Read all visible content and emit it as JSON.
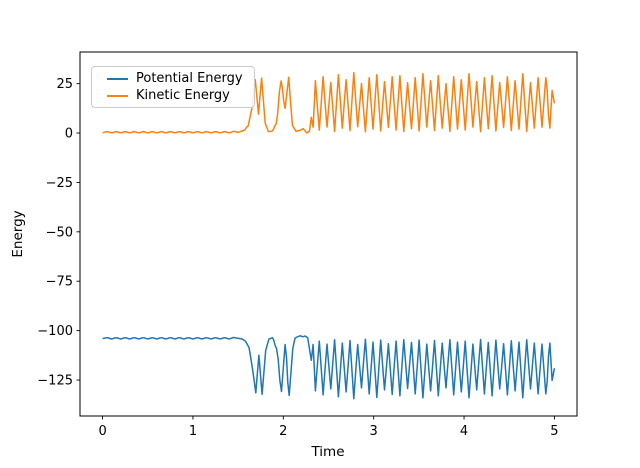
{
  "figure": {
    "background": "#ffffff",
    "frame_color": "#000000",
    "legend_border_color": "#cccccc"
  },
  "chart_data": {
    "type": "line",
    "title": "",
    "xlabel": "Time",
    "ylabel": "Energy",
    "xlim": [
      -0.25,
      5.25
    ],
    "ylim": [
      -143.2,
      41.0
    ],
    "xticks": [
      0,
      1,
      2,
      3,
      4,
      5
    ],
    "yticks": [
      25,
      0,
      -25,
      -50,
      -75,
      -100,
      -125
    ],
    "grid": false,
    "legend": {
      "position": "upper left",
      "frame": true
    },
    "series": [
      {
        "name": "Potential Energy",
        "color": "#1f77b4",
        "interpolation": "cosine",
        "points": [
          [
            0,
            -104
          ],
          [
            0.05,
            -103.6
          ],
          [
            0.1,
            -104.2
          ],
          [
            0.15,
            -103.6
          ],
          [
            0.2,
            -104.2
          ],
          [
            0.25,
            -103.6
          ],
          [
            0.3,
            -104.2
          ],
          [
            0.35,
            -103.6
          ],
          [
            0.4,
            -104.2
          ],
          [
            0.45,
            -103.6
          ],
          [
            0.5,
            -104.2
          ],
          [
            0.55,
            -103.6
          ],
          [
            0.6,
            -104.2
          ],
          [
            0.65,
            -103.6
          ],
          [
            0.7,
            -104.2
          ],
          [
            0.75,
            -103.6
          ],
          [
            0.8,
            -104.2
          ],
          [
            0.85,
            -103.6
          ],
          [
            0.9,
            -104.2
          ],
          [
            0.95,
            -103.6
          ],
          [
            1,
            -104.2
          ],
          [
            1.05,
            -103.6
          ],
          [
            1.1,
            -104.2
          ],
          [
            1.15,
            -103.6
          ],
          [
            1.2,
            -104.2
          ],
          [
            1.25,
            -103.6
          ],
          [
            1.3,
            -104.2
          ],
          [
            1.35,
            -103.6
          ],
          [
            1.4,
            -104.2
          ],
          [
            1.45,
            -103.5
          ],
          [
            1.5,
            -103.9
          ],
          [
            1.54,
            -104.2
          ],
          [
            1.58,
            -105.3
          ],
          [
            1.62,
            -108.5
          ],
          [
            1.655,
            -118
          ],
          [
            1.695,
            -131.5
          ],
          [
            1.73,
            -112.5
          ],
          [
            1.765,
            -132.2
          ],
          [
            1.805,
            -110
          ],
          [
            1.84,
            -104.3
          ],
          [
            1.88,
            -103.6
          ],
          [
            1.925,
            -109
          ],
          [
            1.98,
            -130.8
          ],
          [
            2.02,
            -107
          ],
          [
            2.065,
            -132.8
          ],
          [
            2.105,
            -109
          ],
          [
            2.13,
            -103.8
          ],
          [
            2.16,
            -103
          ],
          [
            2.19,
            -102.6
          ],
          [
            2.215,
            -103.1
          ],
          [
            2.24,
            -102.7
          ],
          [
            2.27,
            -103.6
          ],
          [
            2.31,
            -115
          ],
          [
            2.33,
            -107
          ],
          [
            2.355,
            -130.5
          ],
          [
            2.398,
            -105.3
          ],
          [
            2.44,
            -132.5
          ],
          [
            2.483,
            -106.8
          ],
          [
            2.525,
            -129.5
          ],
          [
            2.568,
            -104.6
          ],
          [
            2.61,
            -133.5
          ],
          [
            2.653,
            -106.3
          ],
          [
            2.695,
            -131
          ],
          [
            2.738,
            -105
          ],
          [
            2.78,
            -134.5
          ],
          [
            2.823,
            -107
          ],
          [
            2.865,
            -129
          ],
          [
            2.908,
            -104.4
          ],
          [
            2.95,
            -132
          ],
          [
            2.993,
            -105.8
          ],
          [
            3.035,
            -133.8
          ],
          [
            3.078,
            -104.8
          ],
          [
            3.12,
            -130
          ],
          [
            3.163,
            -106.6
          ],
          [
            3.205,
            -132.3
          ],
          [
            3.248,
            -105.3
          ],
          [
            3.29,
            -133
          ],
          [
            3.333,
            -104.6
          ],
          [
            3.375,
            -129.3
          ],
          [
            3.418,
            -106
          ],
          [
            3.46,
            -132
          ],
          [
            3.503,
            -104.8
          ],
          [
            3.545,
            -134
          ],
          [
            3.588,
            -106.8
          ],
          [
            3.63,
            -130.5
          ],
          [
            3.673,
            -105
          ],
          [
            3.715,
            -133
          ],
          [
            3.758,
            -106.3
          ],
          [
            3.8,
            -129
          ],
          [
            3.843,
            -104.6
          ],
          [
            3.885,
            -132.5
          ],
          [
            3.928,
            -105.8
          ],
          [
            3.97,
            -131
          ],
          [
            4.013,
            -105.3
          ],
          [
            4.055,
            -134
          ],
          [
            4.098,
            -106.8
          ],
          [
            4.14,
            -130
          ],
          [
            4.183,
            -104.5
          ],
          [
            4.225,
            -132
          ],
          [
            4.268,
            -106
          ],
          [
            4.31,
            -133
          ],
          [
            4.353,
            -104.8
          ],
          [
            4.395,
            -129.5
          ],
          [
            4.438,
            -106.6
          ],
          [
            4.48,
            -132.5
          ],
          [
            4.523,
            -105.1
          ],
          [
            4.565,
            -130.5
          ],
          [
            4.608,
            -105.8
          ],
          [
            4.65,
            -134
          ],
          [
            4.693,
            -104.6
          ],
          [
            4.735,
            -129.5
          ],
          [
            4.778,
            -106.3
          ],
          [
            4.82,
            -132
          ],
          [
            4.863,
            -106.8
          ],
          [
            4.905,
            -132
          ],
          [
            4.95,
            -106.3
          ],
          [
            4.975,
            -125.2
          ],
          [
            5,
            -119
          ]
        ]
      },
      {
        "name": "Kinetic Energy",
        "color": "#ff7f0e",
        "interpolation": "cosine",
        "points": [
          [
            0,
            0.2
          ],
          [
            0.05,
            0.7
          ],
          [
            0.1,
            0.1
          ],
          [
            0.15,
            0.7
          ],
          [
            0.2,
            0.1
          ],
          [
            0.25,
            0.7
          ],
          [
            0.3,
            0.1
          ],
          [
            0.35,
            0.7
          ],
          [
            0.4,
            0.1
          ],
          [
            0.45,
            0.7
          ],
          [
            0.5,
            0.1
          ],
          [
            0.55,
            0.7
          ],
          [
            0.6,
            0.1
          ],
          [
            0.65,
            0.7
          ],
          [
            0.7,
            0.1
          ],
          [
            0.75,
            0.7
          ],
          [
            0.8,
            0.1
          ],
          [
            0.85,
            0.7
          ],
          [
            0.9,
            0.1
          ],
          [
            0.95,
            0.7
          ],
          [
            1,
            0.1
          ],
          [
            1.05,
            0.7
          ],
          [
            1.1,
            0.1
          ],
          [
            1.15,
            0.7
          ],
          [
            1.2,
            0.1
          ],
          [
            1.25,
            0.7
          ],
          [
            1.3,
            0.1
          ],
          [
            1.35,
            0.7
          ],
          [
            1.4,
            0.1
          ],
          [
            1.45,
            0.8
          ],
          [
            1.5,
            0.4
          ],
          [
            1.56,
            1.2
          ],
          [
            1.61,
            3.5
          ],
          [
            1.65,
            12
          ],
          [
            1.69,
            27
          ],
          [
            1.725,
            9.5
          ],
          [
            1.76,
            27.8
          ],
          [
            1.8,
            5
          ],
          [
            1.835,
            0.7
          ],
          [
            1.875,
            0.9
          ],
          [
            1.92,
            4.5
          ],
          [
            1.975,
            26.3
          ],
          [
            2.02,
            12.5
          ],
          [
            2.06,
            28.2
          ],
          [
            2.1,
            4
          ],
          [
            2.14,
            0.8
          ],
          [
            2.18,
            1.3
          ],
          [
            2.22,
            2.2
          ],
          [
            2.26,
            0
          ],
          [
            2.29,
            1
          ],
          [
            2.31,
            8
          ],
          [
            2.33,
            3
          ],
          [
            2.355,
            26.5
          ],
          [
            2.398,
            1.5
          ],
          [
            2.44,
            28.5
          ],
          [
            2.483,
            3
          ],
          [
            2.525,
            25.5
          ],
          [
            2.568,
            0.8
          ],
          [
            2.61,
            29.5
          ],
          [
            2.653,
            2.5
          ],
          [
            2.695,
            27
          ],
          [
            2.738,
            1.2
          ],
          [
            2.78,
            30.5
          ],
          [
            2.823,
            3.2
          ],
          [
            2.865,
            25
          ],
          [
            2.908,
            0.6
          ],
          [
            2.95,
            28
          ],
          [
            2.993,
            2
          ],
          [
            3.035,
            29.5
          ],
          [
            3.078,
            1
          ],
          [
            3.12,
            26
          ],
          [
            3.163,
            2.8
          ],
          [
            3.205,
            28.5
          ],
          [
            3.248,
            1.5
          ],
          [
            3.29,
            29
          ],
          [
            3.333,
            0.8
          ],
          [
            3.375,
            25.5
          ],
          [
            3.418,
            2.2
          ],
          [
            3.46,
            28
          ],
          [
            3.503,
            1
          ],
          [
            3.545,
            30
          ],
          [
            3.588,
            3
          ],
          [
            3.63,
            26.5
          ],
          [
            3.673,
            1.2
          ],
          [
            3.715,
            29
          ],
          [
            3.758,
            2.5
          ],
          [
            3.8,
            25
          ],
          [
            3.843,
            0.8
          ],
          [
            3.885,
            28.5
          ],
          [
            3.928,
            2
          ],
          [
            3.97,
            27
          ],
          [
            4.013,
            1.5
          ],
          [
            4.055,
            30
          ],
          [
            4.098,
            3
          ],
          [
            4.14,
            26
          ],
          [
            4.183,
            0.7
          ],
          [
            4.225,
            28
          ],
          [
            4.268,
            2.2
          ],
          [
            4.31,
            29
          ],
          [
            4.353,
            1
          ],
          [
            4.395,
            25.5
          ],
          [
            4.438,
            2.8
          ],
          [
            4.48,
            28.5
          ],
          [
            4.523,
            1.3
          ],
          [
            4.565,
            26.5
          ],
          [
            4.608,
            2
          ],
          [
            4.65,
            30
          ],
          [
            4.693,
            0.8
          ],
          [
            4.735,
            25.5
          ],
          [
            4.778,
            2.5
          ],
          [
            4.82,
            28
          ],
          [
            4.863,
            3
          ],
          [
            4.905,
            28
          ],
          [
            4.95,
            2.5
          ],
          [
            4.975,
            21.5
          ],
          [
            5,
            15
          ]
        ]
      }
    ]
  }
}
